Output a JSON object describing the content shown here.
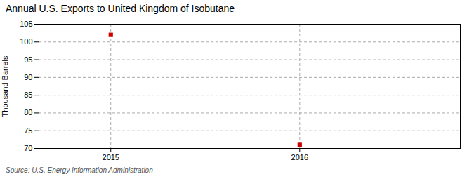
{
  "chart_data": {
    "type": "scatter",
    "title": "Annual U.S. Exports to United Kingdom of Isobutane",
    "ylabel": "Thousand Barrels",
    "caption": "Source: U.S. Energy Information Administration",
    "x": [
      2015,
      2016
    ],
    "values": [
      102,
      71
    ],
    "color": "#cc0000",
    "marker": "square",
    "xlim": [
      2014.62,
      2016.85
    ],
    "xticks": [
      2015,
      2016
    ],
    "ylim": [
      70,
      105
    ],
    "yticks": [
      70,
      75,
      80,
      85,
      90,
      95,
      100,
      105
    ],
    "grid": true
  }
}
